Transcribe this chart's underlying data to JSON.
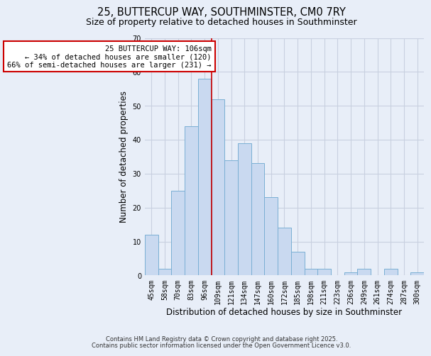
{
  "title": "25, BUTTERCUP WAY, SOUTHMINSTER, CM0 7RY",
  "subtitle": "Size of property relative to detached houses in Southminster",
  "xlabel": "Distribution of detached houses by size in Southminster",
  "ylabel": "Number of detached properties",
  "bar_labels": [
    "45sqm",
    "58sqm",
    "70sqm",
    "83sqm",
    "96sqm",
    "109sqm",
    "121sqm",
    "134sqm",
    "147sqm",
    "160sqm",
    "172sqm",
    "185sqm",
    "198sqm",
    "211sqm",
    "223sqm",
    "236sqm",
    "249sqm",
    "261sqm",
    "274sqm",
    "287sqm",
    "300sqm"
  ],
  "bar_values": [
    12,
    2,
    25,
    44,
    58,
    52,
    34,
    39,
    33,
    23,
    14,
    7,
    2,
    2,
    0,
    1,
    2,
    0,
    2,
    0,
    1
  ],
  "bar_color": "#c9d9f0",
  "bar_edge_color": "#7aafd4",
  "vline_x_index": 5,
  "vline_color": "#cc0000",
  "annotation_text": "25 BUTTERCUP WAY: 106sqm\n← 34% of detached houses are smaller (120)\n66% of semi-detached houses are larger (231) →",
  "annotation_box_color": "#ffffff",
  "annotation_box_edge": "#cc0000",
  "ylim": [
    0,
    70
  ],
  "yticks": [
    0,
    10,
    20,
    30,
    40,
    50,
    60,
    70
  ],
  "footer1": "Contains HM Land Registry data © Crown copyright and database right 2025.",
  "footer2": "Contains public sector information licensed under the Open Government Licence v3.0.",
  "background_color": "#e8eef8",
  "grid_color": "#c8d0e0",
  "title_fontsize": 10.5,
  "subtitle_fontsize": 9,
  "axis_label_fontsize": 8.5,
  "tick_fontsize": 7,
  "footer_fontsize": 6,
  "annotation_fontsize": 7.5
}
